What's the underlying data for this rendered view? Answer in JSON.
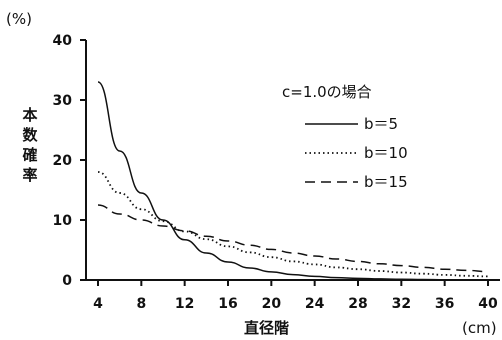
{
  "chart_data": {
    "type": "line",
    "title": "c=1.0の場合",
    "ylabel": "本数確率",
    "ylabel_unit": "(%)",
    "xlabel": "直径階",
    "xlabel_unit": "(cm)",
    "xlim": [
      4,
      40
    ],
    "ylim": [
      0,
      40
    ],
    "x_ticks": [
      "4",
      "8",
      "12",
      "16",
      "20",
      "24",
      "28",
      "32",
      "36",
      "40"
    ],
    "y_ticks": [
      "0",
      "10",
      "20",
      "30",
      "40"
    ],
    "grid": false,
    "legend_position": "top-right",
    "x": [
      4,
      6,
      8,
      10,
      12,
      14,
      16,
      18,
      20,
      22,
      24,
      26,
      28,
      30,
      32,
      34,
      36,
      38,
      40
    ],
    "series": [
      {
        "name": "b＝5",
        "style": "solid",
        "values": [
          33.0,
          21.5,
          14.5,
          10.0,
          6.7,
          4.5,
          3.0,
          2.0,
          1.35,
          0.9,
          0.6,
          0.4,
          0.27,
          0.18,
          0.12,
          0.08,
          0.05,
          0.03,
          0.02
        ]
      },
      {
        "name": "b＝10",
        "style": "dotted",
        "values": [
          18.0,
          14.5,
          11.8,
          9.8,
          8.1,
          6.8,
          5.6,
          4.6,
          3.8,
          3.1,
          2.6,
          2.1,
          1.8,
          1.5,
          1.25,
          1.05,
          0.85,
          0.7,
          0.6
        ]
      },
      {
        "name": "b＝15",
        "style": "dashed",
        "values": [
          12.5,
          11.0,
          10.0,
          9.0,
          8.2,
          7.3,
          6.5,
          5.8,
          5.1,
          4.5,
          4.0,
          3.5,
          3.1,
          2.7,
          2.4,
          2.1,
          1.8,
          1.6,
          1.4
        ]
      }
    ],
    "colors": {
      "line": "#111111",
      "axis": "#111111"
    }
  }
}
